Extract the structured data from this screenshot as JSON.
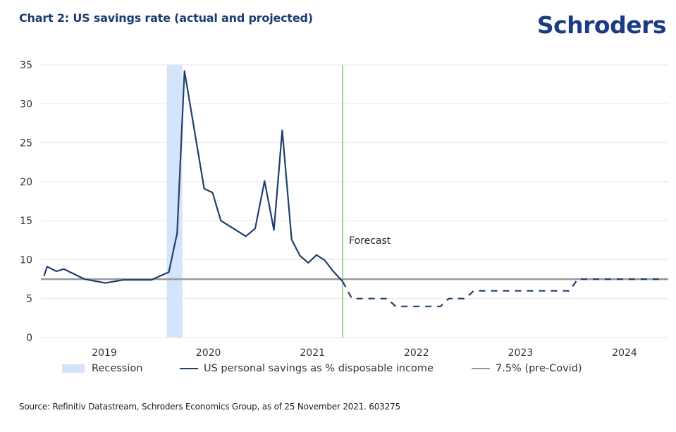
{
  "header": {
    "title": "Chart 2: US savings rate (actual and projected)",
    "logo": "Schroders"
  },
  "footer": {
    "source": "Source: Refinitiv Datastream, Schroders Economics Group, as of 25 November 2021. 603275"
  },
  "colors": {
    "brand": "#1a3b85",
    "title": "#1c3d6e",
    "series": "#1f3f6d",
    "baseline": "#999999",
    "recession": "#d4e4fb",
    "forecast_marker": "#9dd98a",
    "grid": "#e6e6e6"
  },
  "chart_data": {
    "type": "line",
    "title": "Chart 2: US savings rate (actual and projected)",
    "xlabel": "",
    "ylabel": "",
    "xlim": [
      2018.89,
      2024.92
    ],
    "ylim": [
      0,
      35
    ],
    "yticks": [
      0,
      5,
      10,
      15,
      20,
      25,
      30,
      35
    ],
    "xticks": [
      {
        "label": "2019",
        "x": 2019.5
      },
      {
        "label": "2020",
        "x": 2020.5
      },
      {
        "label": "2021",
        "x": 2021.5
      },
      {
        "label": "2022",
        "x": 2022.5
      },
      {
        "label": "2023",
        "x": 2023.5
      },
      {
        "label": "2024",
        "x": 2024.5
      }
    ],
    "grid": true,
    "legend_position": "bottom",
    "series": [
      {
        "name": "US personal savings as % disposable income",
        "style": "solid",
        "points": [
          [
            2018.92,
            7.9
          ],
          [
            2018.95,
            9.1
          ],
          [
            2019.04,
            8.5
          ],
          [
            2019.11,
            8.8
          ],
          [
            2019.31,
            7.5
          ],
          [
            2019.51,
            7.0
          ],
          [
            2019.68,
            7.4
          ],
          [
            2019.95,
            7.4
          ],
          [
            2020.12,
            8.4
          ],
          [
            2020.2,
            13.4
          ],
          [
            2020.27,
            34.2
          ],
          [
            2020.46,
            19.1
          ],
          [
            2020.54,
            18.6
          ],
          [
            2020.62,
            15.0
          ],
          [
            2020.86,
            13.0
          ],
          [
            2020.95,
            14.0
          ],
          [
            2021.04,
            20.1
          ],
          [
            2021.13,
            13.8
          ],
          [
            2021.21,
            26.6
          ],
          [
            2021.3,
            12.6
          ],
          [
            2021.38,
            10.5
          ],
          [
            2021.46,
            9.6
          ],
          [
            2021.54,
            10.6
          ],
          [
            2021.62,
            9.9
          ],
          [
            2021.7,
            8.5
          ],
          [
            2021.79,
            7.2
          ]
        ]
      },
      {
        "name": "US personal savings as % disposable income (projected)",
        "style": "dashed",
        "points": [
          [
            2021.79,
            7.2
          ],
          [
            2021.88,
            5.0
          ],
          [
            2022.22,
            5.0
          ],
          [
            2022.3,
            4.0
          ],
          [
            2022.73,
            4.0
          ],
          [
            2022.81,
            5.0
          ],
          [
            2022.97,
            5.0
          ],
          [
            2023.05,
            6.0
          ],
          [
            2023.97,
            6.0
          ],
          [
            2024.05,
            7.5
          ],
          [
            2024.89,
            7.5
          ]
        ]
      },
      {
        "name": "7.5% (pre-Covid)",
        "style": "solid",
        "constant": 7.5
      }
    ],
    "recession": {
      "name": "Recession",
      "start": 2020.1,
      "end": 2020.25
    },
    "forecast": {
      "label": "Forecast",
      "x": 2021.79
    },
    "legend": [
      {
        "label": "Recession",
        "kind": "area"
      },
      {
        "label": "US personal savings as % disposable income",
        "kind": "line"
      },
      {
        "label": "7.5% (pre-Covid)",
        "kind": "line"
      }
    ]
  }
}
